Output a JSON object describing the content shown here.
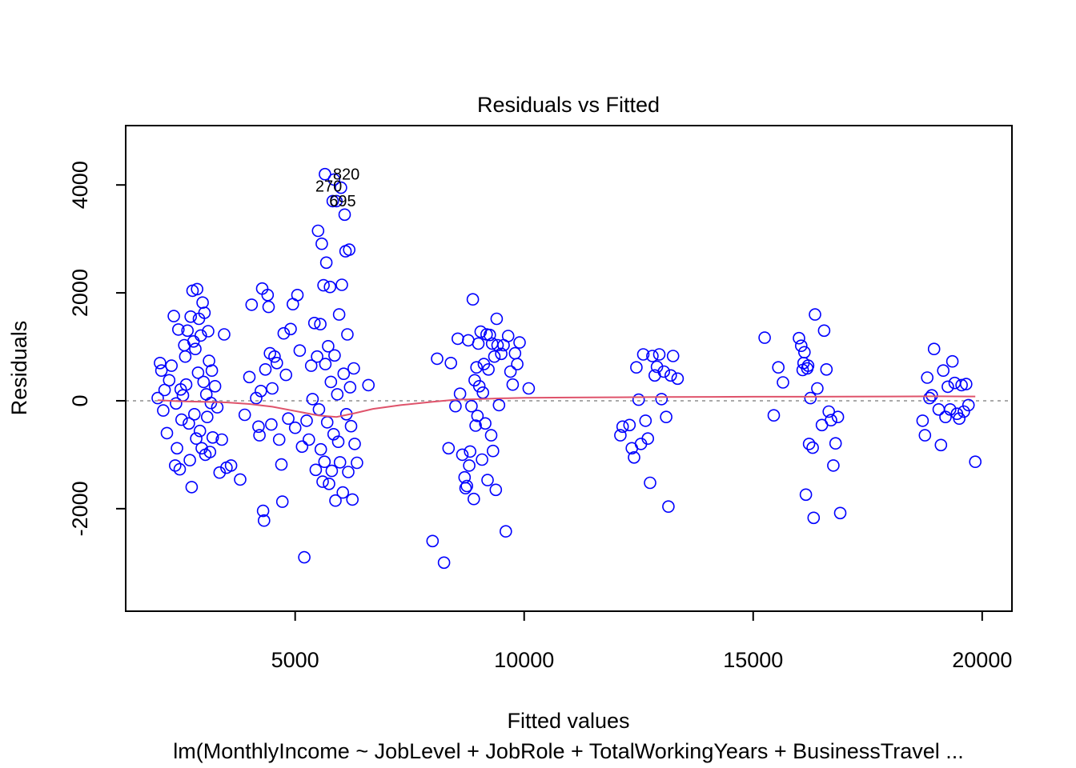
{
  "chart_data": {
    "type": "scatter",
    "title": "Residuals vs Fitted",
    "xlabel": "Fitted values",
    "ylabel": "Residuals",
    "subtitle": "lm(MonthlyIncome ~ JobLevel + JobRole + TotalWorkingYears + BusinessTravel  ...",
    "xlim": [
      1300,
      20650
    ],
    "ylim": [
      -3900,
      5100
    ],
    "x_ticks": [
      5000,
      10000,
      15000,
      20000
    ],
    "x_tick_labels": [
      "5000",
      "10000",
      "15000",
      "20000"
    ],
    "y_ticks": [
      -2000,
      0,
      2000,
      4000
    ],
    "y_tick_labels": [
      "-2000",
      "0",
      "2000",
      "4000"
    ],
    "reference_line_y": 0,
    "colors": {
      "points": "#0000ff",
      "smooth": "#df536b",
      "refline": "#aaaaaa",
      "frame": "#000000"
    },
    "point_labels": [
      {
        "text": "820",
        "x": 5650,
        "y": 4200
      },
      {
        "text": "270",
        "x": 6000,
        "y": 3950
      },
      {
        "text": "695",
        "x": 5850,
        "y": 3720
      }
    ],
    "points": [
      [
        2000,
        50
      ],
      [
        2050,
        700
      ],
      [
        2080,
        560
      ],
      [
        2120,
        -180
      ],
      [
        2150,
        200
      ],
      [
        2200,
        -600
      ],
      [
        2250,
        380
      ],
      [
        2300,
        650
      ],
      [
        2350,
        1570
      ],
      [
        2380,
        -1200
      ],
      [
        2400,
        -50
      ],
      [
        2420,
        -880
      ],
      [
        2450,
        1320
      ],
      [
        2480,
        -1270
      ],
      [
        2500,
        210
      ],
      [
        2520,
        -350
      ],
      [
        2550,
        100
      ],
      [
        2580,
        1030
      ],
      [
        2600,
        820
      ],
      [
        2620,
        300
      ],
      [
        2650,
        1300
      ],
      [
        2680,
        -420
      ],
      [
        2700,
        -1100
      ],
      [
        2720,
        1560
      ],
      [
        2740,
        -1600
      ],
      [
        2760,
        2040
      ],
      [
        2780,
        1100
      ],
      [
        2800,
        -250
      ],
      [
        2820,
        960
      ],
      [
        2840,
        -700
      ],
      [
        2860,
        2070
      ],
      [
        2880,
        520
      ],
      [
        2900,
        1520
      ],
      [
        2920,
        -560
      ],
      [
        2940,
        1210
      ],
      [
        2960,
        -880
      ],
      [
        2980,
        1820
      ],
      [
        3000,
        350
      ],
      [
        3020,
        1630
      ],
      [
        3040,
        -1000
      ],
      [
        3060,
        120
      ],
      [
        3080,
        -300
      ],
      [
        3100,
        1290
      ],
      [
        3120,
        740
      ],
      [
        3140,
        -950
      ],
      [
        3160,
        -40
      ],
      [
        3180,
        560
      ],
      [
        3200,
        -680
      ],
      [
        3250,
        270
      ],
      [
        3300,
        -120
      ],
      [
        3350,
        -1330
      ],
      [
        3400,
        -720
      ],
      [
        3450,
        1230
      ],
      [
        3500,
        -1240
      ],
      [
        3600,
        -1200
      ],
      [
        3800,
        -1460
      ],
      [
        3900,
        -260
      ],
      [
        4000,
        440
      ],
      [
        4050,
        1780
      ],
      [
        4150,
        50
      ],
      [
        4200,
        -480
      ],
      [
        4220,
        -640
      ],
      [
        4250,
        180
      ],
      [
        4280,
        2080
      ],
      [
        4300,
        -2040
      ],
      [
        4320,
        -2220
      ],
      [
        4350,
        580
      ],
      [
        4400,
        1960
      ],
      [
        4420,
        1740
      ],
      [
        4450,
        880
      ],
      [
        4480,
        -440
      ],
      [
        4500,
        230
      ],
      [
        4550,
        820
      ],
      [
        4600,
        700
      ],
      [
        4650,
        -720
      ],
      [
        4700,
        -1180
      ],
      [
        4720,
        -1870
      ],
      [
        4750,
        1250
      ],
      [
        4800,
        480
      ],
      [
        4850,
        -330
      ],
      [
        4900,
        1330
      ],
      [
        4950,
        1790
      ],
      [
        5000,
        -500
      ],
      [
        5050,
        1960
      ],
      [
        5100,
        930
      ],
      [
        5150,
        -850
      ],
      [
        5200,
        -2900
      ],
      [
        5250,
        -370
      ],
      [
        5300,
        -720
      ],
      [
        5350,
        650
      ],
      [
        5380,
        30
      ],
      [
        5420,
        1440
      ],
      [
        5450,
        -1280
      ],
      [
        5480,
        820
      ],
      [
        5500,
        3150
      ],
      [
        5520,
        -160
      ],
      [
        5550,
        1420
      ],
      [
        5560,
        -900
      ],
      [
        5580,
        2910
      ],
      [
        5600,
        -1500
      ],
      [
        5620,
        2140
      ],
      [
        5640,
        -1130
      ],
      [
        5650,
        4200
      ],
      [
        5660,
        680
      ],
      [
        5680,
        2560
      ],
      [
        5700,
        -400
      ],
      [
        5720,
        1010
      ],
      [
        5740,
        -1540
      ],
      [
        5760,
        2110
      ],
      [
        5780,
        350
      ],
      [
        5800,
        -1300
      ],
      [
        5820,
        3700
      ],
      [
        5840,
        -620
      ],
      [
        5850,
        4100
      ],
      [
        5860,
        840
      ],
      [
        5880,
        -1850
      ],
      [
        5900,
        3700
      ],
      [
        5920,
        120
      ],
      [
        5940,
        -760
      ],
      [
        5960,
        1600
      ],
      [
        5980,
        -1140
      ],
      [
        6000,
        3950
      ],
      [
        6020,
        2150
      ],
      [
        6040,
        -1700
      ],
      [
        6060,
        500
      ],
      [
        6080,
        3450
      ],
      [
        6100,
        2770
      ],
      [
        6120,
        -250
      ],
      [
        6140,
        1230
      ],
      [
        6160,
        -1320
      ],
      [
        6180,
        2800
      ],
      [
        6200,
        250
      ],
      [
        6220,
        -470
      ],
      [
        6250,
        -1830
      ],
      [
        6280,
        600
      ],
      [
        6300,
        -800
      ],
      [
        6350,
        -1150
      ],
      [
        6600,
        290
      ],
      [
        8000,
        -2600
      ],
      [
        8100,
        780
      ],
      [
        8250,
        -3000
      ],
      [
        8350,
        -880
      ],
      [
        8400,
        700
      ],
      [
        8500,
        -100
      ],
      [
        8550,
        1150
      ],
      [
        8600,
        130
      ],
      [
        8650,
        -1000
      ],
      [
        8700,
        -1420
      ],
      [
        8720,
        -1620
      ],
      [
        8750,
        -1580
      ],
      [
        8780,
        1120
      ],
      [
        8800,
        -1200
      ],
      [
        8820,
        -940
      ],
      [
        8850,
        -100
      ],
      [
        8880,
        1880
      ],
      [
        8900,
        -1820
      ],
      [
        8920,
        380
      ],
      [
        8940,
        -460
      ],
      [
        8960,
        620
      ],
      [
        8980,
        -280
      ],
      [
        9000,
        1060
      ],
      [
        9020,
        270
      ],
      [
        9050,
        1280
      ],
      [
        9080,
        -1090
      ],
      [
        9100,
        150
      ],
      [
        9120,
        680
      ],
      [
        9150,
        -420
      ],
      [
        9180,
        1230
      ],
      [
        9200,
        -1470
      ],
      [
        9220,
        580
      ],
      [
        9250,
        1220
      ],
      [
        9280,
        -640
      ],
      [
        9300,
        1060
      ],
      [
        9320,
        -930
      ],
      [
        9350,
        820
      ],
      [
        9380,
        -1650
      ],
      [
        9400,
        1520
      ],
      [
        9420,
        1030
      ],
      [
        9450,
        -80
      ],
      [
        9500,
        870
      ],
      [
        9550,
        1030
      ],
      [
        9600,
        -2420
      ],
      [
        9650,
        1200
      ],
      [
        9700,
        540
      ],
      [
        9750,
        300
      ],
      [
        9800,
        880
      ],
      [
        9850,
        680
      ],
      [
        9900,
        1080
      ],
      [
        10100,
        230
      ],
      [
        12100,
        -640
      ],
      [
        12150,
        -480
      ],
      [
        12300,
        -450
      ],
      [
        12350,
        -880
      ],
      [
        12400,
        -1050
      ],
      [
        12450,
        620
      ],
      [
        12500,
        20
      ],
      [
        12550,
        -800
      ],
      [
        12600,
        860
      ],
      [
        12650,
        -370
      ],
      [
        12700,
        -700
      ],
      [
        12750,
        -1520
      ],
      [
        12800,
        830
      ],
      [
        12850,
        470
      ],
      [
        12900,
        630
      ],
      [
        12950,
        860
      ],
      [
        13000,
        30
      ],
      [
        13050,
        540
      ],
      [
        13100,
        -300
      ],
      [
        13150,
        -1960
      ],
      [
        13200,
        470
      ],
      [
        13250,
        830
      ],
      [
        13350,
        410
      ],
      [
        15250,
        1170
      ],
      [
        15450,
        -270
      ],
      [
        15550,
        620
      ],
      [
        15650,
        340
      ],
      [
        16000,
        1160
      ],
      [
        16050,
        1020
      ],
      [
        16080,
        570
      ],
      [
        16100,
        700
      ],
      [
        16120,
        900
      ],
      [
        16150,
        -1740
      ],
      [
        16180,
        600
      ],
      [
        16200,
        650
      ],
      [
        16220,
        -800
      ],
      [
        16250,
        50
      ],
      [
        16300,
        -870
      ],
      [
        16320,
        -2170
      ],
      [
        16350,
        1600
      ],
      [
        16400,
        230
      ],
      [
        16500,
        -450
      ],
      [
        16550,
        1300
      ],
      [
        16600,
        580
      ],
      [
        16650,
        -200
      ],
      [
        16700,
        -360
      ],
      [
        16750,
        -1200
      ],
      [
        16800,
        -790
      ],
      [
        16850,
        -300
      ],
      [
        16900,
        -2080
      ],
      [
        18700,
        -370
      ],
      [
        18750,
        -640
      ],
      [
        18800,
        430
      ],
      [
        18850,
        50
      ],
      [
        18900,
        100
      ],
      [
        18950,
        960
      ],
      [
        19050,
        -160
      ],
      [
        19100,
        -820
      ],
      [
        19150,
        560
      ],
      [
        19200,
        -300
      ],
      [
        19250,
        260
      ],
      [
        19300,
        -160
      ],
      [
        19350,
        730
      ],
      [
        19400,
        330
      ],
      [
        19450,
        -240
      ],
      [
        19500,
        -330
      ],
      [
        19550,
        290
      ],
      [
        19600,
        -200
      ],
      [
        19650,
        310
      ],
      [
        19700,
        -80
      ],
      [
        19850,
        -1130
      ]
    ],
    "smooth_line": [
      [
        2000,
        10
      ],
      [
        2500,
        -10
      ],
      [
        3000,
        -20
      ],
      [
        3500,
        -30
      ],
      [
        4000,
        -60
      ],
      [
        4500,
        -110
      ],
      [
        5000,
        -190
      ],
      [
        5500,
        -270
      ],
      [
        5900,
        -300
      ],
      [
        6300,
        -230
      ],
      [
        6700,
        -150
      ],
      [
        7300,
        -80
      ],
      [
        8000,
        -20
      ],
      [
        8500,
        20
      ],
      [
        9000,
        30
      ],
      [
        9500,
        45
      ],
      [
        10000,
        55
      ],
      [
        11000,
        60
      ],
      [
        12000,
        65
      ],
      [
        13000,
        70
      ],
      [
        14000,
        72
      ],
      [
        15000,
        75
      ],
      [
        16000,
        75
      ],
      [
        17000,
        78
      ],
      [
        18000,
        80
      ],
      [
        19000,
        82
      ],
      [
        19850,
        80
      ]
    ]
  }
}
